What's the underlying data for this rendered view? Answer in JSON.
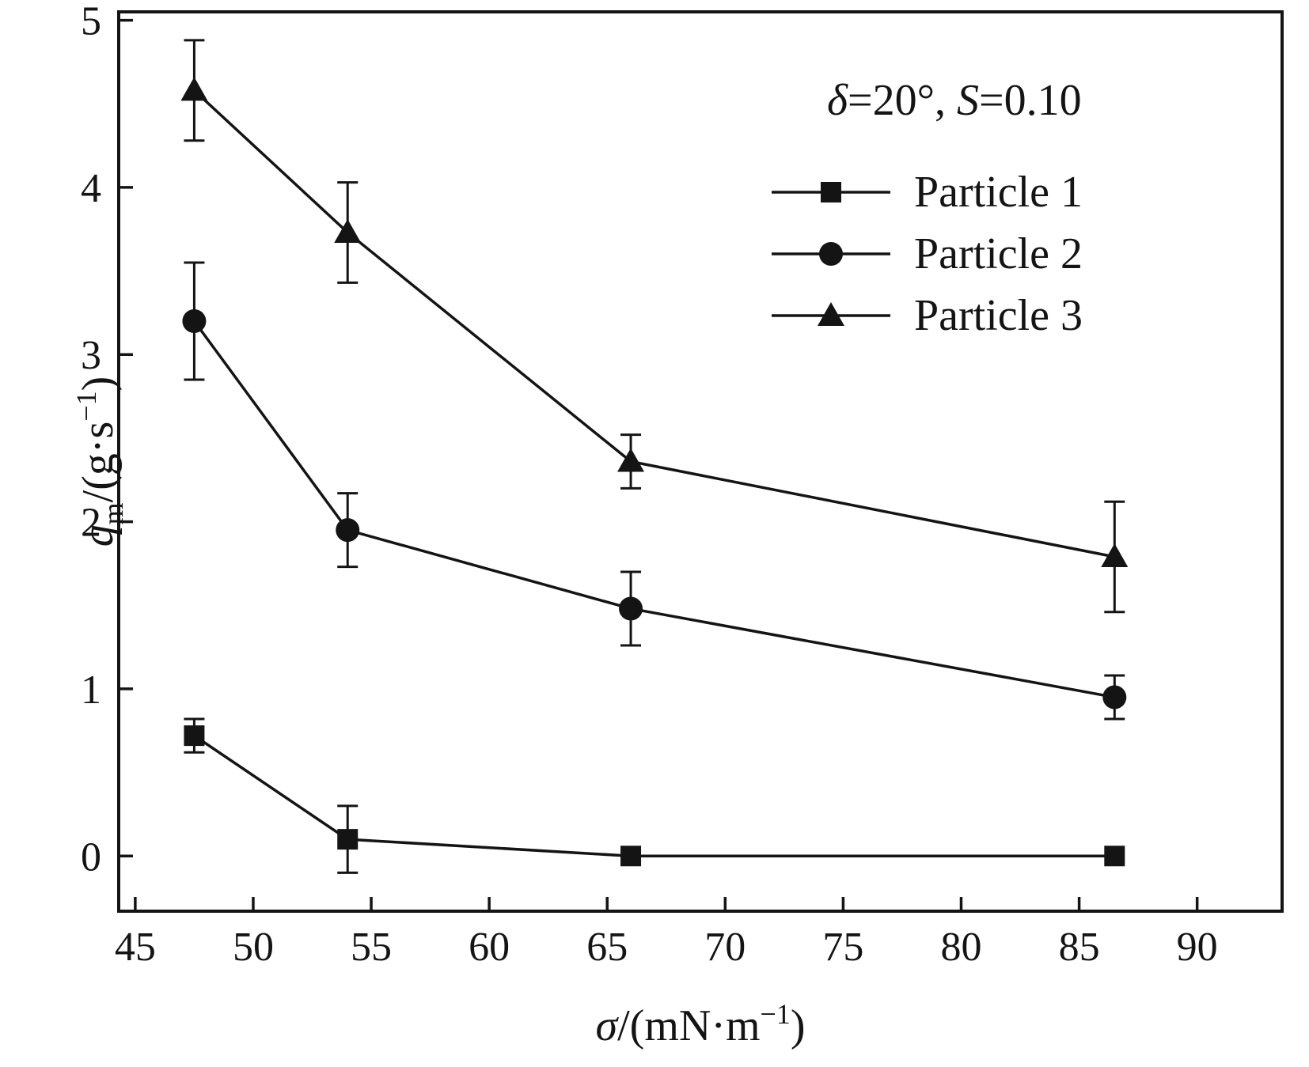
{
  "chart_data": {
    "type": "line",
    "title": "",
    "annotation": "δ=20°, S=0.10",
    "annotation_parts": [
      {
        "text": "δ",
        "italic": true
      },
      {
        "text": "=20°, ",
        "italic": false
      },
      {
        "text": "S",
        "italic": true
      },
      {
        "text": "=0.10",
        "italic": false
      }
    ],
    "xlabel": "σ/(mN·m−1)",
    "xlabel_parts": [
      {
        "text": "σ",
        "italic": true
      },
      {
        "text": "/(mN·m"
      },
      {
        "text": "−1",
        "script": "sup"
      },
      {
        "text": ")"
      }
    ],
    "ylabel": "qm/(g·s−1)",
    "ylabel_parts": [
      {
        "text": "q",
        "italic": true
      },
      {
        "text": "m",
        "script": "sub"
      },
      {
        "text": "/(g·s"
      },
      {
        "text": "−1",
        "script": "sup"
      },
      {
        "text": ")"
      }
    ],
    "x": [
      47.5,
      54,
      66,
      86.5
    ],
    "series": [
      {
        "name": "Particle 1",
        "marker": "square",
        "values": [
          0.72,
          0.1,
          0.0,
          0.0
        ],
        "errors": [
          0.1,
          0.2,
          0.0,
          0.0
        ]
      },
      {
        "name": "Particle 2",
        "marker": "circle",
        "values": [
          3.2,
          1.95,
          1.48,
          0.95
        ],
        "errors": [
          0.35,
          0.22,
          0.22,
          0.13
        ]
      },
      {
        "name": "Particle 3",
        "marker": "triangle",
        "values": [
          4.58,
          3.73,
          2.36,
          1.79
        ],
        "errors": [
          0.3,
          0.3,
          0.16,
          0.33
        ]
      }
    ],
    "xlim": [
      44.3,
      93.6
    ],
    "ylim": [
      -0.33,
      5.05
    ],
    "xticks": [
      45,
      50,
      55,
      60,
      65,
      70,
      75,
      80,
      85,
      90
    ],
    "yticks": [
      0,
      1,
      2,
      3,
      4,
      5
    ],
    "grid": false,
    "legend_position": "top-right",
    "color": "#141414",
    "background": "#ffffff"
  }
}
